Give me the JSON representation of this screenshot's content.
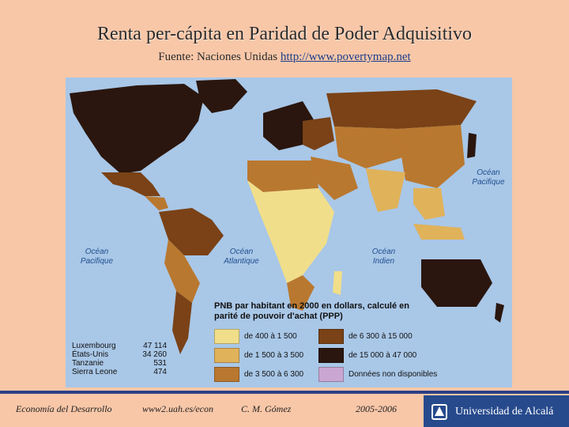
{
  "title": "Renta per-cápita en Paridad de Poder Adquisitivo",
  "subtitle": {
    "source_label": "Fuente: Naciones Unidas",
    "link": "http://www.povertymap.net"
  },
  "map": {
    "oceans": {
      "pacific_right": "Océan Pacifique",
      "pacific_left": "Océan Pacifique",
      "atlantic": "Océan Atlantique",
      "indian": "Océan Indien"
    },
    "legend": {
      "title": "PNB par habitant en 2000 en dollars, calculé en parité de pouvoir d'achat (PPP)",
      "items": [
        {
          "label": "de 400 à 1 500",
          "color": "#F1DE8A"
        },
        {
          "label": "de 1 500 à 3 500",
          "color": "#E0B25A"
        },
        {
          "label": "de 3 500 à 6 300",
          "color": "#B9782F"
        },
        {
          "label": "de 6 300 à 15 000",
          "color": "#7A4216"
        },
        {
          "label": "de 15 000 à 47 000",
          "color": "#2A160E"
        },
        {
          "label": "Données non disponibles",
          "color": "#C9A7D2"
        }
      ]
    },
    "examples": [
      {
        "country": "Luxembourg",
        "value": "47 114"
      },
      {
        "country": "États-Unis",
        "value": "34 260"
      },
      {
        "country": "Tanzanie",
        "value": "531"
      },
      {
        "country": "Sierra Leone",
        "value": "474"
      }
    ]
  },
  "footer": {
    "course": "Economía del Desarrollo",
    "url": "www2.uah.es/econ",
    "author": "C. M. Gómez",
    "years": "2005-2006",
    "logo": "Universidad de Alcalá"
  }
}
